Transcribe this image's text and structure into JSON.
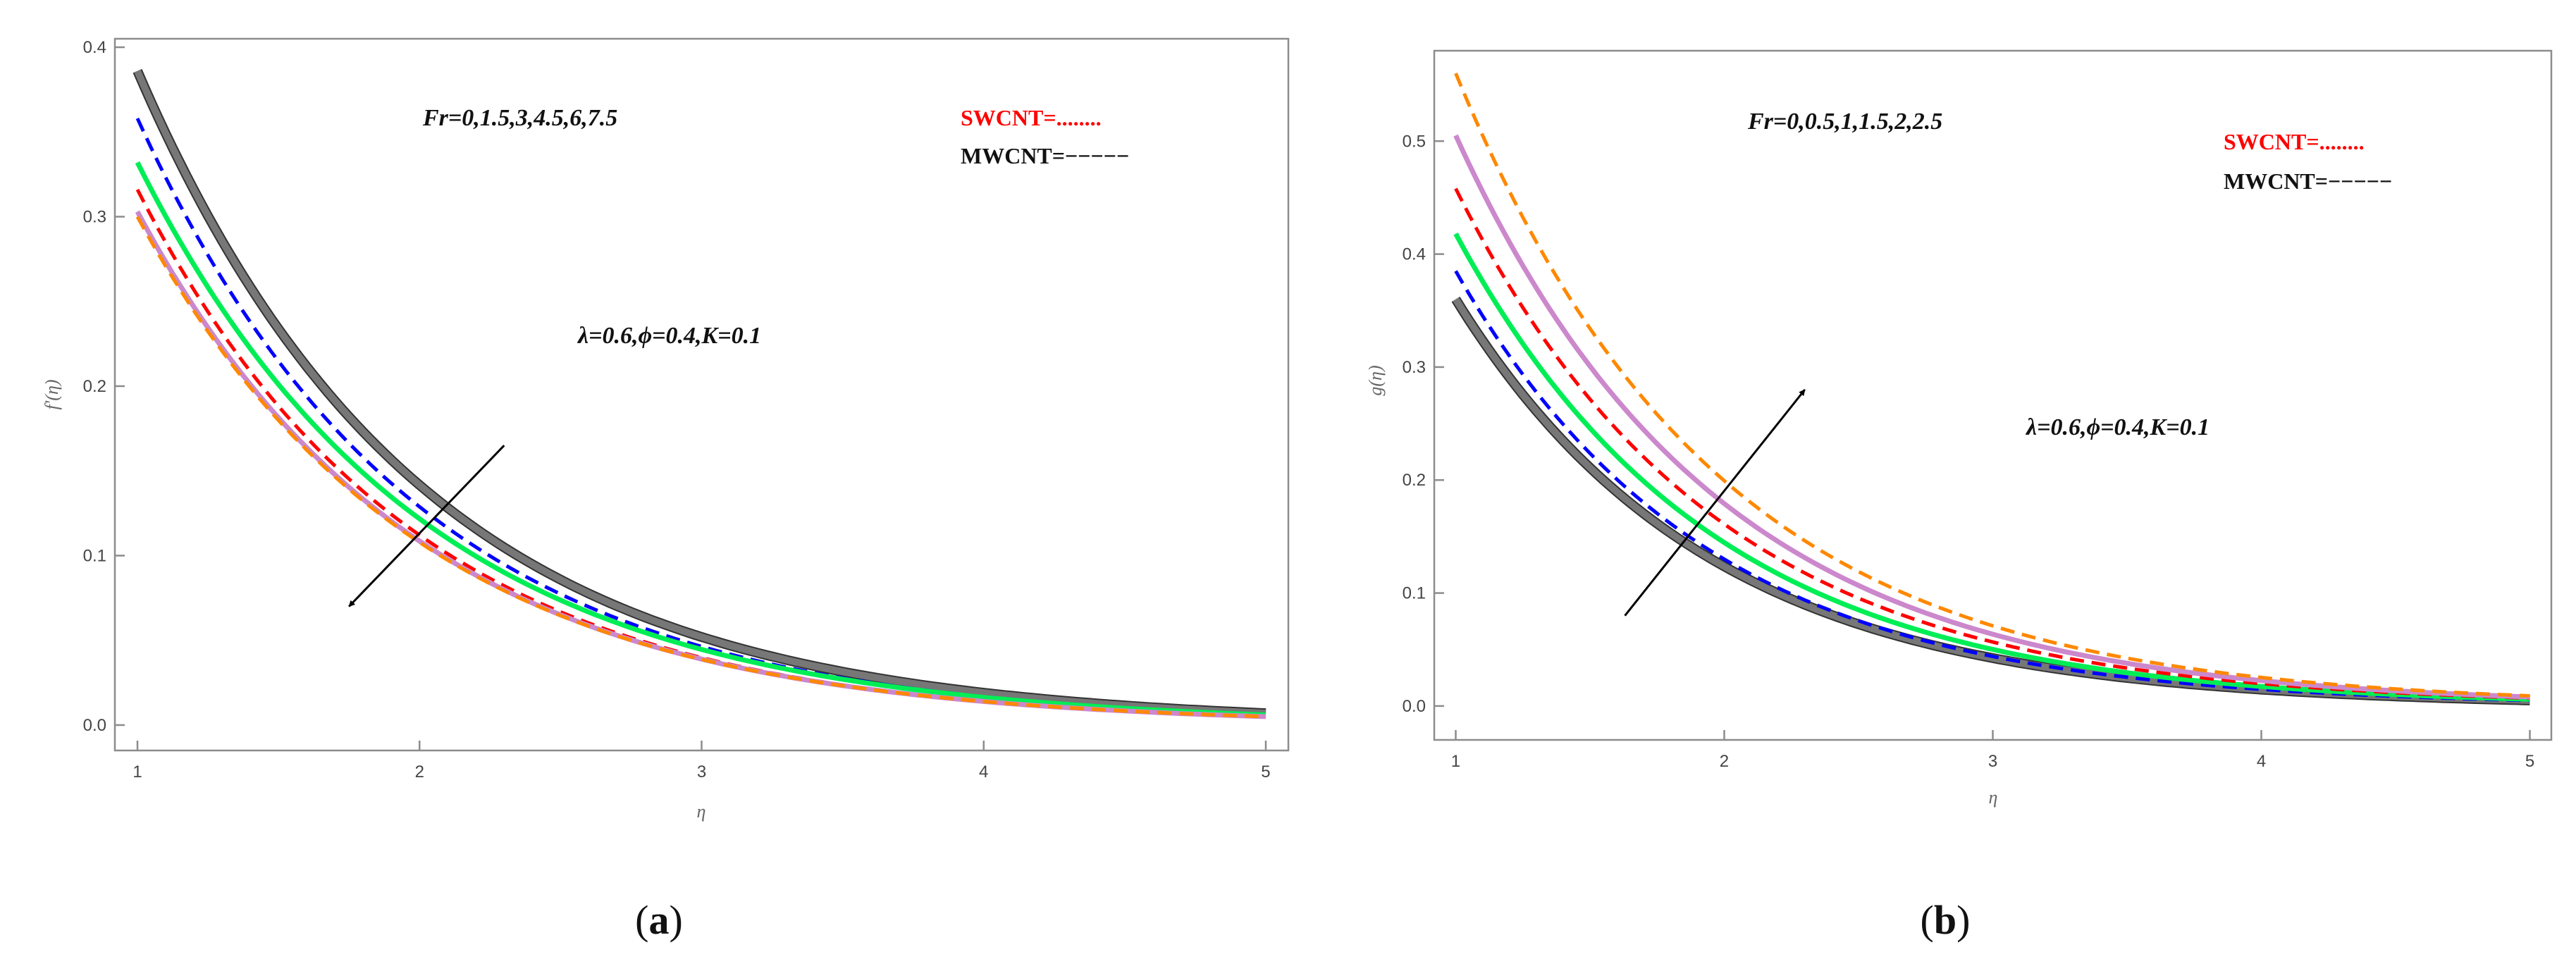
{
  "chart_data": [
    {
      "type": "line",
      "panel_label": "a",
      "xlabel": "η",
      "ylabel": "f'(η)",
      "xlim": [
        0.92,
        5.08
      ],
      "ylim": [
        -0.015,
        0.405
      ],
      "x_ticks": [
        1,
        2,
        3,
        4,
        5
      ],
      "y_ticks": [
        0.0,
        0.1,
        0.2,
        0.3,
        0.4
      ],
      "x_tick_labels": [
        "1",
        "2",
        "3",
        "4",
        "5"
      ],
      "y_tick_labels": [
        "0.0",
        "0.1",
        "0.2",
        "0.3",
        "0.4"
      ],
      "annotations": {
        "fr": "Fr=0,1.5,3,4.5,6,7.5",
        "params": "λ=0.6,ϕ=0.4,K=0.1"
      },
      "legend": {
        "swcnt": "SWCNT=........",
        "mwcnt": "MWCNT=−−−−−",
        "swcnt_color": "#ff0000",
        "mwcnt_color": "#111111"
      },
      "arrow": {
        "from": [
          2.3,
          0.165
        ],
        "to": [
          1.75,
          0.07
        ],
        "direction": "decreasing"
      },
      "series": [
        {
          "name": "Fr=0",
          "y_start": 0.386,
          "y_end": 0.007,
          "color": "#777777",
          "style": "solid-thick"
        },
        {
          "name": "Fr=1.5",
          "y_start": 0.358,
          "y_end": 0.006,
          "color": "#0000ff",
          "style": "dashed"
        },
        {
          "name": "Fr=3",
          "y_start": 0.332,
          "y_end": 0.006,
          "color": "#00ee55",
          "style": "solid"
        },
        {
          "name": "Fr=4.5",
          "y_start": 0.316,
          "y_end": 0.005,
          "color": "#ff0000",
          "style": "dashed"
        },
        {
          "name": "Fr=6",
          "y_start": 0.303,
          "y_end": 0.005,
          "color": "#cc88cc",
          "style": "solid"
        },
        {
          "name": "Fr=7.5",
          "y_start": 0.3,
          "y_end": 0.005,
          "color": "#ff8800",
          "style": "dashed"
        }
      ]
    },
    {
      "type": "line",
      "panel_label": "b",
      "xlabel": "η",
      "ylabel": "g(η)",
      "xlim": [
        0.92,
        5.08
      ],
      "ylim": [
        -0.03,
        0.58
      ],
      "x_ticks": [
        1,
        2,
        3,
        4,
        5
      ],
      "y_ticks": [
        0.0,
        0.1,
        0.2,
        0.3,
        0.4,
        0.5
      ],
      "x_tick_labels": [
        "1",
        "2",
        "3",
        "4",
        "5"
      ],
      "y_tick_labels": [
        "0.0",
        "0.1",
        "0.2",
        "0.3",
        "0.4",
        "0.5"
      ],
      "annotations": {
        "fr": "Fr=0,0.5,1,1.5,2,2.5",
        "params": "λ=0.6,ϕ=0.4,K=0.1"
      },
      "legend": {
        "swcnt": "SWCNT=........",
        "mwcnt": "MWCNT=−−−−−",
        "swcnt_color": "#ff0000",
        "mwcnt_color": "#111111"
      },
      "arrow": {
        "from": [
          1.63,
          0.08
        ],
        "to": [
          2.3,
          0.28
        ],
        "direction": "increasing"
      },
      "series": [
        {
          "name": "Fr=0",
          "y_start": 0.36,
          "y_end": 0.005,
          "color": "#777777",
          "style": "solid-thick"
        },
        {
          "name": "Fr=0.5",
          "y_start": 0.385,
          "y_end": 0.005,
          "color": "#0000ff",
          "style": "dashed"
        },
        {
          "name": "Fr=1",
          "y_start": 0.418,
          "y_end": 0.006,
          "color": "#00ee55",
          "style": "solid"
        },
        {
          "name": "Fr=1.5",
          "y_start": 0.458,
          "y_end": 0.007,
          "color": "#ff0000",
          "style": "dashed"
        },
        {
          "name": "Fr=2",
          "y_start": 0.505,
          "y_end": 0.008,
          "color": "#cc88cc",
          "style": "solid"
        },
        {
          "name": "Fr=2.5",
          "y_start": 0.56,
          "y_end": 0.009,
          "color": "#ff8800",
          "style": "dashed"
        }
      ]
    }
  ]
}
